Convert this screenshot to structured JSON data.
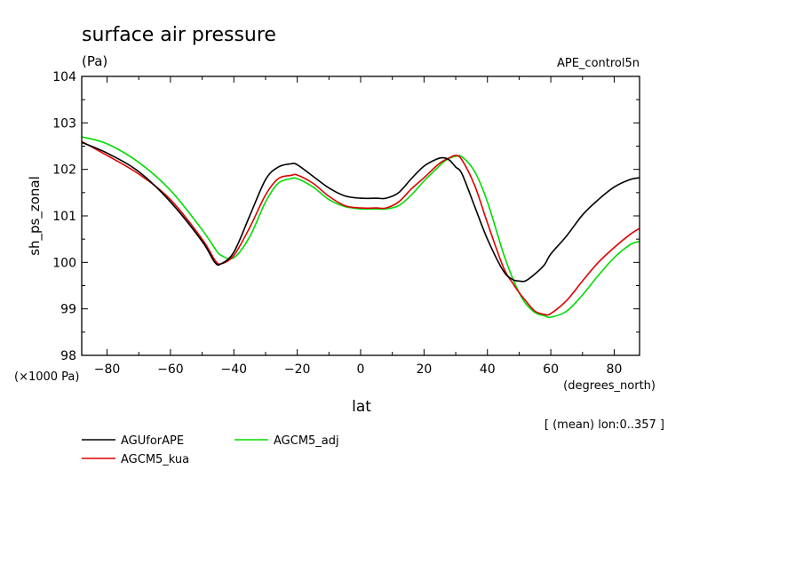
{
  "chart_data": {
    "type": "line",
    "title": "surface air pressure",
    "units": "(Pa)",
    "experiment": "APE_control5n",
    "xlabel": "lat",
    "x_units": "(degrees_north)",
    "ylabel": "sh_ps_zonal",
    "y_scale_note": "(×1000 Pa)",
    "subset_note": "[ (mean) lon:0..357 ]",
    "xlim": [
      -88,
      88
    ],
    "ylim": [
      98,
      104
    ],
    "xticks": [
      -80,
      -60,
      -40,
      -20,
      0,
      20,
      40,
      60,
      80
    ],
    "yticks": [
      98,
      99,
      100,
      101,
      102,
      103,
      104
    ],
    "x": [
      -88,
      -80,
      -70,
      -60,
      -50,
      -46,
      -44,
      -40,
      -35,
      -30,
      -26,
      -22,
      -20,
      -15,
      -10,
      -5,
      0,
      5,
      8,
      12,
      16,
      20,
      24,
      26,
      28,
      30,
      32,
      36,
      40,
      45,
      48,
      50,
      52,
      55,
      58,
      60,
      65,
      70,
      75,
      80,
      85,
      88
    ],
    "series": [
      {
        "name": "AGUforAPE",
        "color": "#000000",
        "values": [
          102.58,
          102.35,
          101.95,
          101.3,
          100.45,
          100.0,
          99.97,
          100.22,
          101.0,
          101.78,
          102.05,
          102.12,
          102.1,
          101.85,
          101.6,
          101.43,
          101.38,
          101.38,
          101.38,
          101.5,
          101.8,
          102.07,
          102.22,
          102.25,
          102.2,
          102.05,
          101.9,
          101.2,
          100.5,
          99.82,
          99.63,
          99.6,
          99.6,
          99.75,
          99.95,
          100.18,
          100.57,
          101.02,
          101.35,
          101.62,
          101.78,
          101.82
        ]
      },
      {
        "name": "AGCM5_kua",
        "color": "#dd0000",
        "values": [
          102.6,
          102.3,
          101.9,
          101.35,
          100.5,
          100.05,
          99.97,
          100.15,
          100.75,
          101.45,
          101.8,
          101.87,
          101.88,
          101.7,
          101.42,
          101.22,
          101.17,
          101.17,
          101.17,
          101.3,
          101.58,
          101.82,
          102.08,
          102.18,
          102.25,
          102.3,
          102.2,
          101.65,
          100.85,
          99.9,
          99.55,
          99.35,
          99.18,
          98.95,
          98.88,
          98.9,
          99.18,
          99.6,
          100.0,
          100.32,
          100.6,
          100.73
        ]
      },
      {
        "name": "AGCM5_adj",
        "color": "#00dd00",
        "values": [
          102.7,
          102.55,
          102.15,
          101.55,
          100.7,
          100.3,
          100.15,
          100.1,
          100.55,
          101.3,
          101.7,
          101.8,
          101.8,
          101.62,
          101.35,
          101.2,
          101.15,
          101.15,
          101.15,
          101.22,
          101.45,
          101.75,
          102.02,
          102.15,
          102.24,
          102.28,
          102.27,
          101.95,
          101.3,
          100.2,
          99.65,
          99.35,
          99.12,
          98.92,
          98.85,
          98.82,
          98.95,
          99.3,
          99.72,
          100.1,
          100.38,
          100.45
        ]
      }
    ]
  }
}
